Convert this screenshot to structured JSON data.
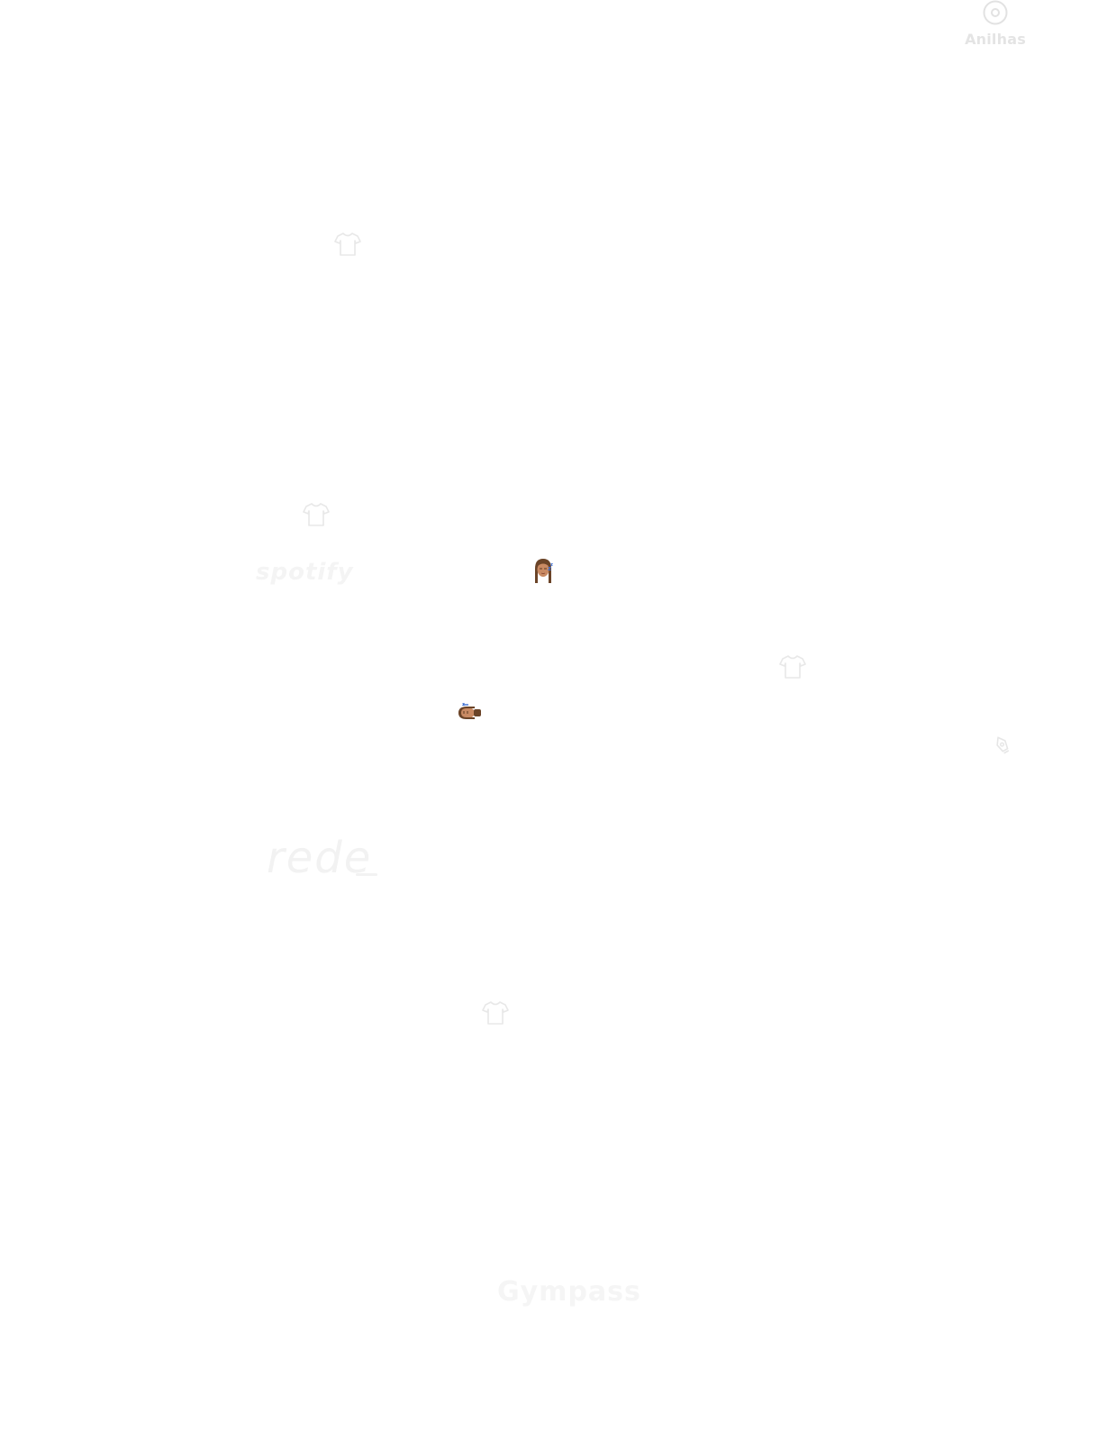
{
  "nav": {
    "anilhas": {
      "label": "Anilhas",
      "icon": "ring-icon",
      "color": "#e4e4e4"
    }
  },
  "decorations": {
    "shirt_icon": "tshirt-icon",
    "shirt_color": "#ececec",
    "edit_icon": "pen-tool-icon",
    "memoji_sleeping": "sleeping-avatar-icon",
    "memoji_lying": "lying-avatar-icon"
  },
  "logos": {
    "spotify": "spotify",
    "rede": "rede",
    "gympass": "Gympass"
  },
  "colors": {
    "background": "#ffffff",
    "faint_text": "#f3f3f3"
  }
}
